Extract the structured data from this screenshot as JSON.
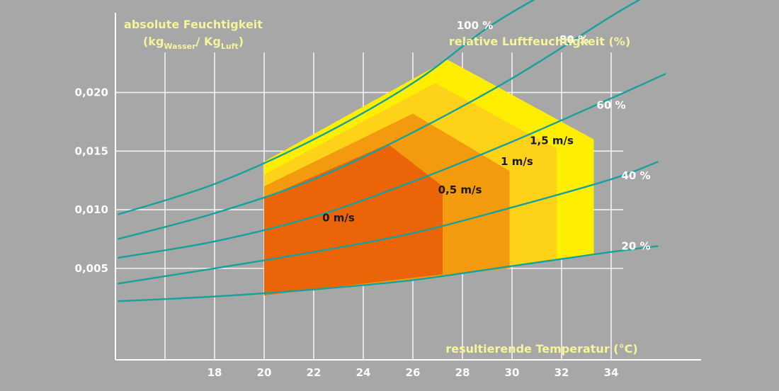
{
  "chart_data": {
    "type": "area",
    "ylabel": {
      "text": "absolute Feuchtigkeit",
      "unit_open": "(kg",
      "unit_sub1": "Wasser",
      "unit_sep": "/ Kg",
      "unit_sub2": "Luft",
      "unit_close": ")"
    },
    "xlabel": "resultierende Temperatur (°C)",
    "curve_legend_title": "relative Luftfeuchtigkeit (%)",
    "xlim": [
      14.0,
      38.0
    ],
    "ylim": [
      -0.0028,
      0.0268
    ],
    "x_ticks": [
      18,
      20,
      22,
      24,
      26,
      28,
      30,
      32,
      34
    ],
    "x_tick_labels": [
      "18",
      "20",
      "22",
      "24",
      "26",
      "28",
      "30",
      "32",
      "34"
    ],
    "x_grid": [
      16,
      18,
      20,
      22,
      24,
      26,
      28,
      30,
      32,
      34
    ],
    "y_ticks": [
      0.005,
      0.01,
      0.015,
      0.02
    ],
    "y_tick_labels": [
      "0,005",
      "0,010",
      "0,015",
      "0,020"
    ],
    "grid": true,
    "humidity_curves": [
      {
        "label": "20 %",
        "label_at": [
          35.0,
          0.0066
        ],
        "points": [
          [
            14.1,
            0.0022
          ],
          [
            18,
            0.0026
          ],
          [
            22,
            0.0032
          ],
          [
            26,
            0.004
          ],
          [
            30,
            0.0052
          ],
          [
            34,
            0.0064
          ],
          [
            35.9,
            0.0069
          ]
        ]
      },
      {
        "label": "40 %",
        "label_at": [
          35.0,
          0.0126
        ],
        "points": [
          [
            14.1,
            0.0037
          ],
          [
            18,
            0.005
          ],
          [
            22,
            0.0064
          ],
          [
            26,
            0.008
          ],
          [
            30,
            0.0102
          ],
          [
            34,
            0.0126
          ],
          [
            35.9,
            0.0141
          ]
        ]
      },
      {
        "label": "60 %",
        "label_at": [
          34.0,
          0.0186
        ],
        "points": [
          [
            14.1,
            0.0059
          ],
          [
            18,
            0.0073
          ],
          [
            22,
            0.0094
          ],
          [
            26,
            0.0124
          ],
          [
            30,
            0.0158
          ],
          [
            34,
            0.0195
          ],
          [
            36.2,
            0.0216
          ]
        ]
      },
      {
        "label": "80 %",
        "label_at": [
          32.5,
          0.0242
        ],
        "points": [
          [
            14.1,
            0.0075
          ],
          [
            18,
            0.0097
          ],
          [
            22,
            0.0126
          ],
          [
            26,
            0.0166
          ],
          [
            30,
            0.0212
          ],
          [
            34,
            0.0265
          ],
          [
            35.4,
            0.0282
          ]
        ]
      },
      {
        "label": "100 %",
        "label_at": [
          28.5,
          0.0254
        ],
        "points": [
          [
            14.1,
            0.0096
          ],
          [
            18,
            0.0122
          ],
          [
            22,
            0.016
          ],
          [
            26,
            0.0208
          ],
          [
            29,
            0.0255
          ],
          [
            31.2,
            0.0283
          ]
        ]
      }
    ],
    "comfort_zones": [
      {
        "label": "1,5 m/s",
        "color": "#ffee00",
        "label_at": [
          31.6,
          0.0156
        ],
        "polygon": [
          [
            20,
            0.0141
          ],
          [
            27.4,
            0.0228
          ],
          [
            33.3,
            0.016
          ],
          [
            33.3,
            0.0061
          ],
          [
            20,
            0.0027
          ]
        ]
      },
      {
        "label": "1 m/s",
        "color": "#ffd21a",
        "label_at": [
          30.2,
          0.0138
        ],
        "polygon": [
          [
            20,
            0.013
          ],
          [
            26.9,
            0.0208
          ],
          [
            31.8,
            0.0152
          ],
          [
            31.8,
            0.0058
          ],
          [
            20,
            0.0027
          ]
        ]
      },
      {
        "label": "0,5 m/s",
        "color": "#f39a0e",
        "label_at": [
          27.9,
          0.0114
        ],
        "polygon": [
          [
            20,
            0.012
          ],
          [
            26.0,
            0.0182
          ],
          [
            29.9,
            0.0133
          ],
          [
            29.9,
            0.005
          ],
          [
            20,
            0.0027
          ]
        ]
      },
      {
        "label": "0 m/s",
        "color": "#ec6408",
        "label_at": [
          23.0,
          0.009
        ],
        "polygon": [
          [
            20,
            0.011
          ],
          [
            25.0,
            0.0156
          ],
          [
            27.2,
            0.012
          ],
          [
            27.2,
            0.0045
          ],
          [
            20,
            0.0027
          ]
        ]
      }
    ],
    "colors": {
      "background": "#a7a7a7",
      "grid": "#f2f2f2",
      "curve": "#16a29b",
      "title": "#f4f59a",
      "text": "#ffffff"
    }
  }
}
